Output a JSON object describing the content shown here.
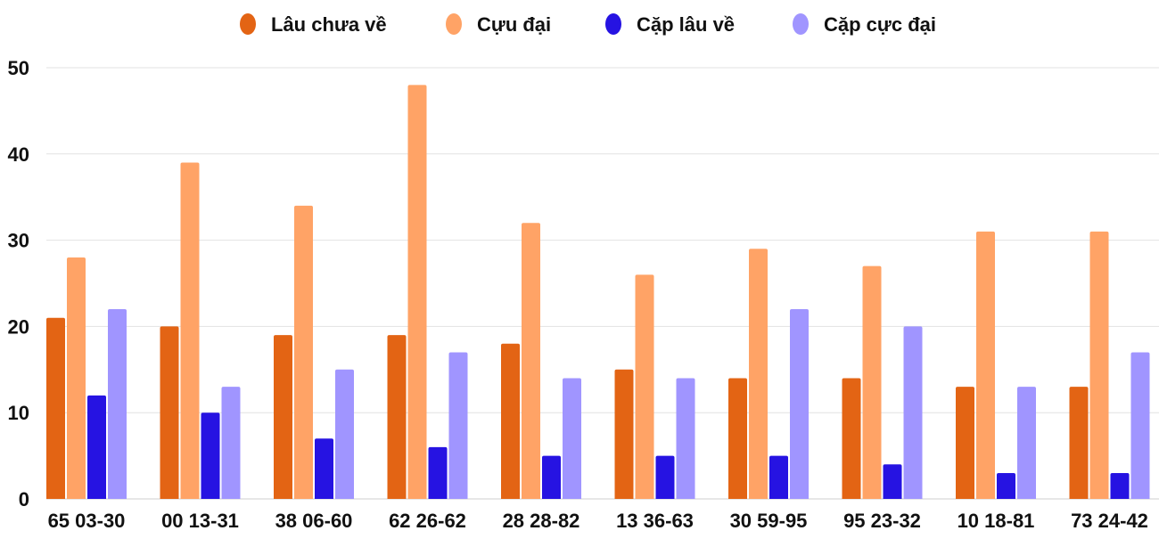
{
  "chart_data": {
    "type": "bar",
    "title": "",
    "xlabel": "",
    "ylabel": "",
    "ylim": [
      0,
      50
    ],
    "yticks": [
      "0",
      "10",
      "20",
      "30",
      "40",
      "50"
    ],
    "grid": true,
    "legend_position": "top",
    "categories": [
      "65 03-30",
      "00 13-31",
      "38 06-60",
      "62 26-62",
      "28 28-82",
      "13 36-63",
      "30 59-95",
      "95 23-32",
      "10 18-81",
      "73 24-42"
    ],
    "series": [
      {
        "name": "Lâu chưa về",
        "color": "#E36414",
        "values": [
          21,
          20,
          19,
          19,
          18,
          15,
          14,
          14,
          13,
          13
        ]
      },
      {
        "name": "Cựu đại",
        "color": "#FFA366",
        "values": [
          28,
          39,
          34,
          48,
          32,
          26,
          29,
          27,
          31,
          31
        ]
      },
      {
        "name": "Cặp lâu về",
        "color": "#2613E2",
        "values": [
          12,
          10,
          7,
          6,
          5,
          5,
          5,
          4,
          3,
          3
        ]
      },
      {
        "name": "Cặp cực đại",
        "color": "#A095FF",
        "values": [
          22,
          13,
          15,
          17,
          14,
          14,
          22,
          20,
          13,
          17
        ]
      }
    ]
  }
}
